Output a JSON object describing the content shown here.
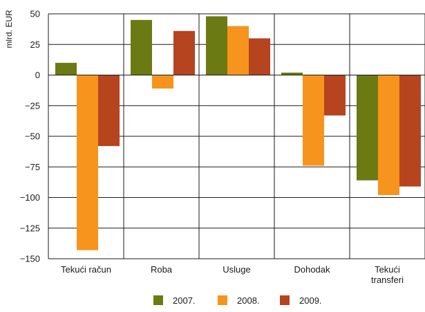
{
  "chart_data": {
    "type": "bar",
    "ylabel": "mlrd. EUR",
    "xlabel": "",
    "ylim": [
      -150,
      50
    ],
    "yticks": [
      50,
      25,
      0,
      -25,
      -50,
      -75,
      -100,
      -125,
      -150
    ],
    "ytick_labels": [
      "50",
      "25",
      "0",
      "−25",
      "−50",
      "−75",
      "−100",
      "−125",
      "−150"
    ],
    "categories": [
      [
        "Tekući račun"
      ],
      [
        "Roba"
      ],
      [
        "Usluge"
      ],
      [
        "Dohodak"
      ],
      [
        "Tekući",
        "transferi"
      ]
    ],
    "series": [
      {
        "name": "2007.",
        "color": "#6b7a12",
        "values": [
          10,
          45,
          48,
          2,
          -86
        ]
      },
      {
        "name": "2008.",
        "color": "#f7941d",
        "values": [
          -143,
          -11,
          40,
          -74,
          -98
        ]
      },
      {
        "name": "2009.",
        "color": "#b5441f",
        "values": [
          -58,
          36,
          30,
          -33,
          -91
        ]
      }
    ],
    "grid": {
      "horizontal": true,
      "vertical_separators": true
    },
    "legend": "bottom"
  }
}
